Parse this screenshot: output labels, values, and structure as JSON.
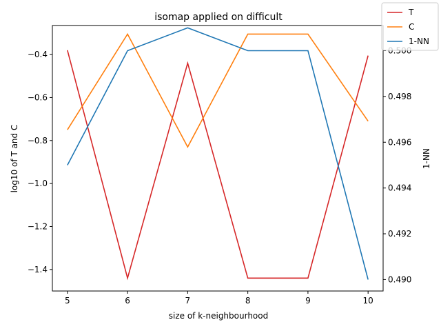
{
  "chart_data": {
    "type": "line",
    "title": "isomap applied on difficult",
    "xlabel": "size of k-neighbourhood",
    "ylabel_left": "log10 of T and C",
    "ylabel_right": "1-NN",
    "x": [
      5,
      6,
      7,
      8,
      9,
      10
    ],
    "xticks": [
      "5",
      "6",
      "7",
      "8",
      "9",
      "10"
    ],
    "xlim": [
      4.75,
      10.25
    ],
    "ylim_left": [
      -1.5,
      -0.265
    ],
    "yticks_left": [
      "-1.4",
      "-1.2",
      "-1.0",
      "-0.8",
      "-0.6",
      "-0.4"
    ],
    "ylim_right": [
      0.4895,
      0.5011
    ],
    "yticks_right": [
      "0.490",
      "0.492",
      "0.494",
      "0.496",
      "0.498",
      "0.500"
    ],
    "legend_position": "top-right",
    "grid": false,
    "series": [
      {
        "name": "T",
        "axis": "left",
        "color": "#d62728",
        "values": [
          -0.38,
          -1.44,
          -0.44,
          -1.44,
          -1.44,
          -0.405
        ]
      },
      {
        "name": "C",
        "axis": "left",
        "color": "#ff7f0e",
        "values": [
          -0.75,
          -0.305,
          -0.83,
          -0.305,
          -0.305,
          -0.71
        ]
      },
      {
        "name": "1-NN",
        "axis": "right",
        "color": "#1f77b4",
        "values": [
          0.495,
          0.5,
          0.501,
          0.5,
          0.5,
          0.49
        ]
      }
    ]
  }
}
